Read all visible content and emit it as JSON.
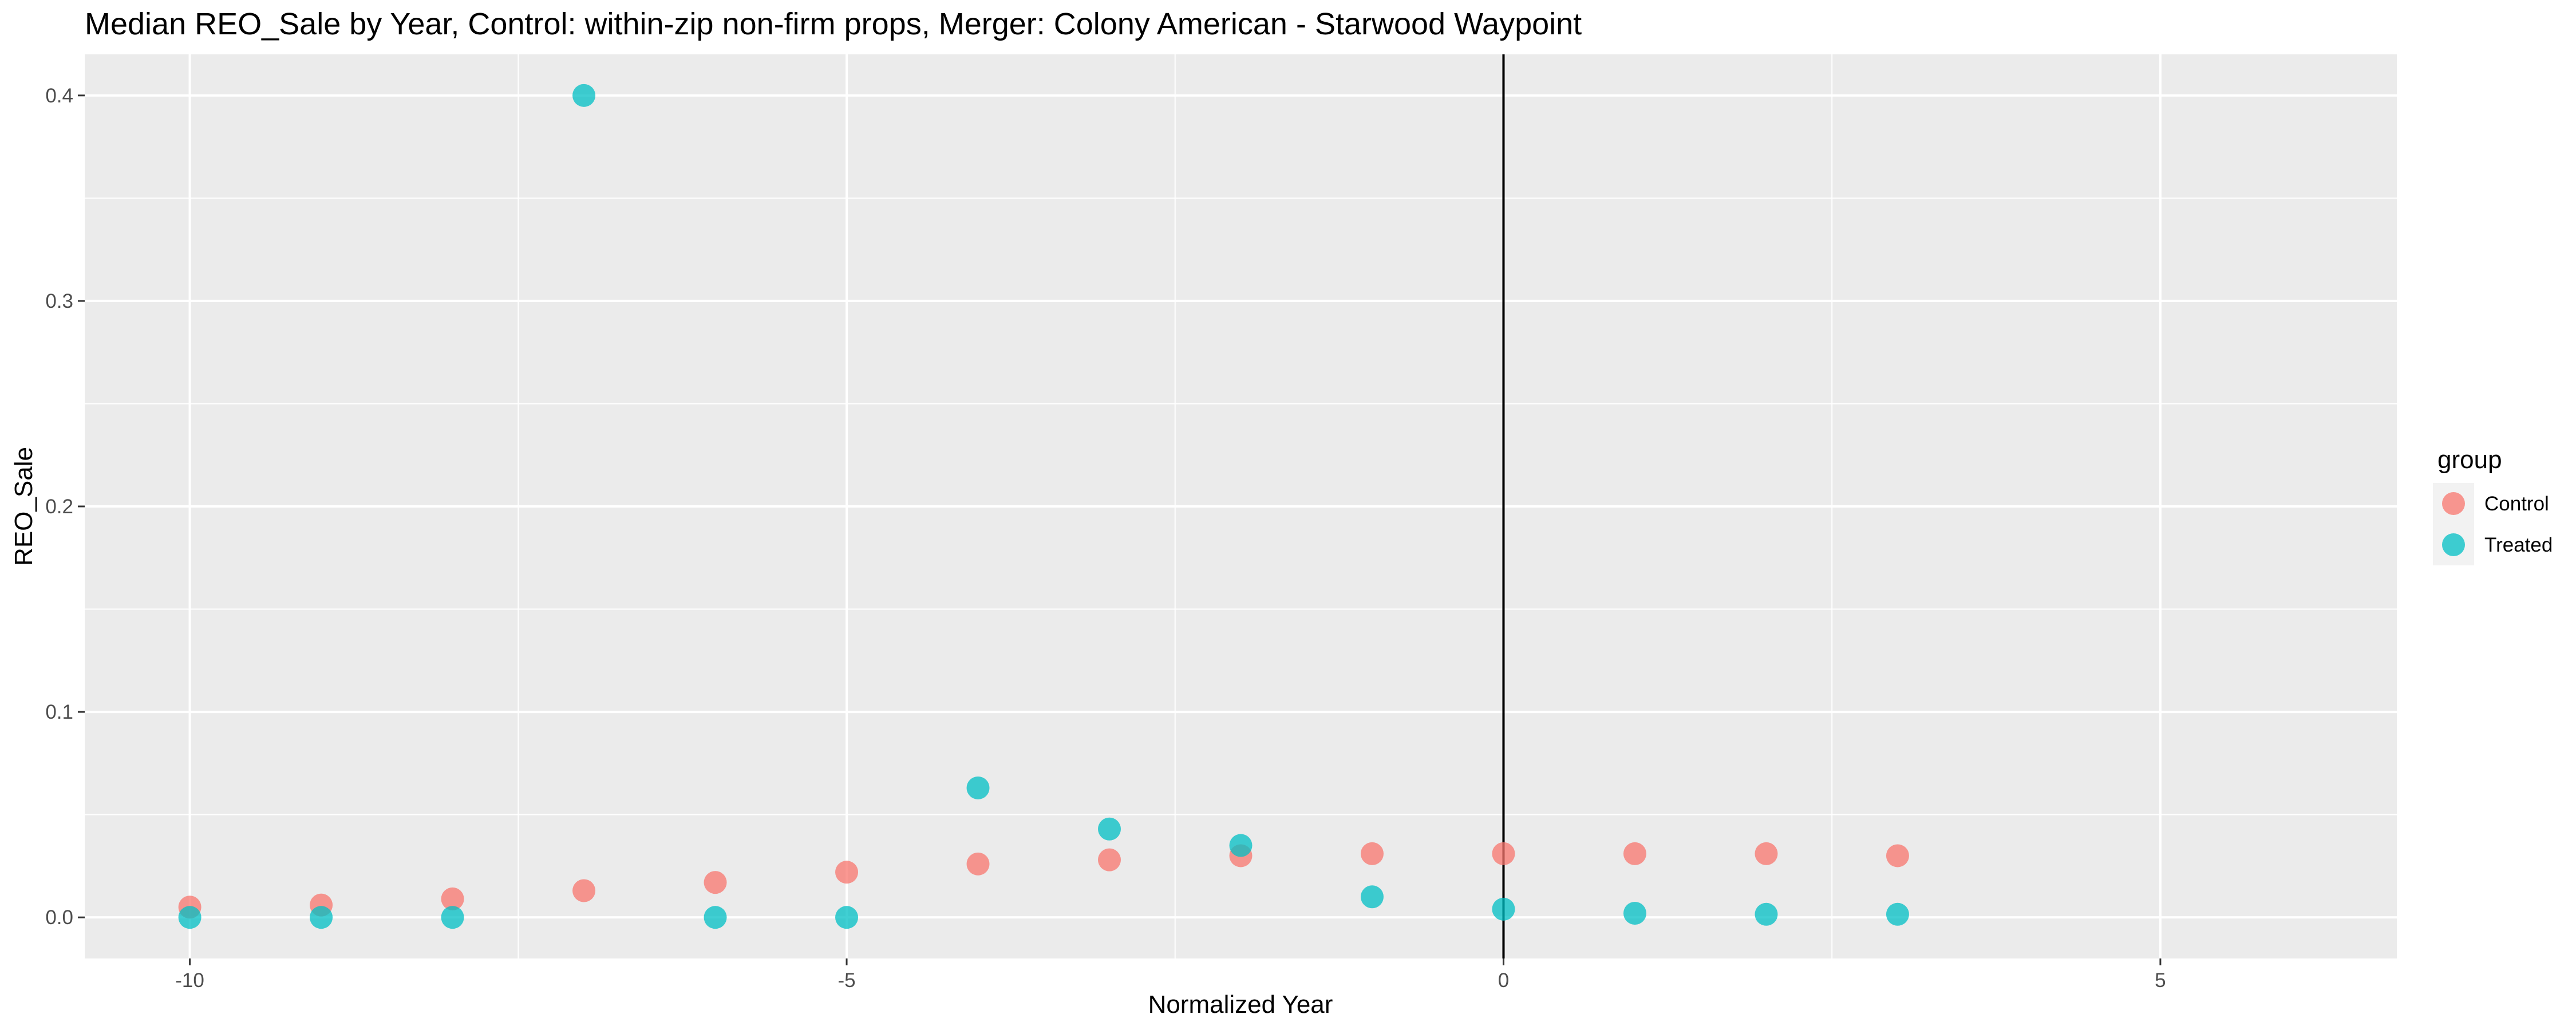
{
  "chart_data": {
    "type": "scatter",
    "title": "Median REO_Sale by Year, Control: within-zip non-firm props, Merger: Colony American - Starwood Waypoint",
    "xlabel": "Normalized Year",
    "ylabel": "REO_Sale",
    "xlim": [
      -10.8,
      6.8
    ],
    "ylim": [
      -0.02,
      0.42
    ],
    "x_ticks": [
      -10,
      -5,
      0,
      5
    ],
    "x_tick_labels": [
      "-10",
      "-5",
      "0",
      "5"
    ],
    "y_ticks": [
      0.0,
      0.1,
      0.2,
      0.3,
      0.4
    ],
    "y_tick_labels": [
      "0.0",
      "0.1",
      "0.2",
      "0.3",
      "0.4"
    ],
    "vertical_reference_line_x": 0,
    "grid": true,
    "legend": {
      "title": "group",
      "position": "right"
    },
    "series": [
      {
        "name": "Control",
        "color": "#F8766D",
        "points": [
          {
            "x": -10,
            "y": 0.005
          },
          {
            "x": -9,
            "y": 0.006
          },
          {
            "x": -8,
            "y": 0.009
          },
          {
            "x": -7,
            "y": 0.013
          },
          {
            "x": -6,
            "y": 0.017
          },
          {
            "x": -5,
            "y": 0.022
          },
          {
            "x": -4,
            "y": 0.026
          },
          {
            "x": -3,
            "y": 0.028
          },
          {
            "x": -2,
            "y": 0.03
          },
          {
            "x": -1,
            "y": 0.031
          },
          {
            "x": 0,
            "y": 0.031
          },
          {
            "x": 1,
            "y": 0.031
          },
          {
            "x": 2,
            "y": 0.031
          },
          {
            "x": 3,
            "y": 0.03
          }
        ]
      },
      {
        "name": "Treated",
        "color": "#00BFC4",
        "points": [
          {
            "x": -10,
            "y": 0.0
          },
          {
            "x": -9,
            "y": 0.0
          },
          {
            "x": -8,
            "y": 0.0
          },
          {
            "x": -7,
            "y": 0.4
          },
          {
            "x": -6,
            "y": 0.0
          },
          {
            "x": -5,
            "y": 0.0
          },
          {
            "x": -4,
            "y": 0.063
          },
          {
            "x": -3,
            "y": 0.043
          },
          {
            "x": -2,
            "y": 0.035
          },
          {
            "x": -1,
            "y": 0.01
          },
          {
            "x": 0,
            "y": 0.004
          },
          {
            "x": 1,
            "y": 0.002
          },
          {
            "x": 2,
            "y": 0.0015
          },
          {
            "x": 3,
            "y": 0.0015
          }
        ]
      }
    ]
  }
}
